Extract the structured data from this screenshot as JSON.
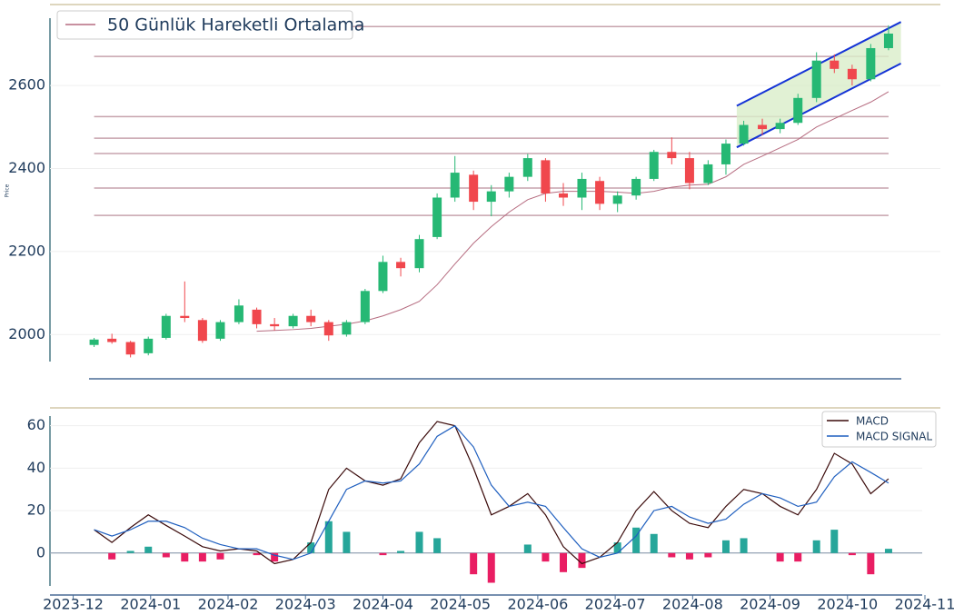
{
  "chart_data": [
    {
      "type": "candlestick",
      "y_label": "Price",
      "x": [
        0.27,
        0.5,
        0.74,
        0.97,
        1.2,
        1.44,
        1.67,
        1.9,
        2.14,
        2.37,
        2.6,
        2.84,
        3.07,
        3.3,
        3.53,
        3.77,
        4.0,
        4.23,
        4.47,
        4.7,
        4.93,
        5.17,
        5.4,
        5.63,
        5.87,
        6.1,
        6.33,
        6.57,
        6.8,
        7.03,
        7.27,
        7.5,
        7.73,
        7.96,
        8.2,
        8.43,
        8.66,
        8.9,
        9.13,
        9.36,
        9.6,
        9.83,
        10.06,
        10.3,
        10.53
      ],
      "open": [
        1975,
        1990,
        1982,
        1955,
        1992,
        2045,
        2035,
        1990,
        2030,
        2060,
        2025,
        2020,
        2045,
        2030,
        2000,
        2030,
        2105,
        2175,
        2160,
        2235,
        2330,
        2385,
        2320,
        2345,
        2380,
        2420,
        2340,
        2330,
        2370,
        2315,
        2335,
        2375,
        2440,
        2425,
        2365,
        2410,
        2460,
        2505,
        2495,
        2510,
        2570,
        2660,
        2640,
        2615,
        2690
      ],
      "high": [
        1992,
        2002,
        1985,
        1995,
        2050,
        2128,
        2040,
        2035,
        2085,
        2065,
        2040,
        2050,
        2060,
        2035,
        2035,
        2110,
        2190,
        2185,
        2240,
        2340,
        2430,
        2395,
        2360,
        2390,
        2435,
        2425,
        2365,
        2390,
        2380,
        2345,
        2380,
        2445,
        2475,
        2440,
        2420,
        2470,
        2515,
        2520,
        2520,
        2580,
        2680,
        2675,
        2650,
        2700,
        2745
      ],
      "low": [
        1970,
        1978,
        1945,
        1950,
        1988,
        2030,
        1980,
        1985,
        2025,
        2015,
        2010,
        2015,
        2020,
        1985,
        1995,
        2025,
        2100,
        2140,
        2150,
        2230,
        2320,
        2300,
        2285,
        2330,
        2370,
        2320,
        2310,
        2300,
        2300,
        2295,
        2325,
        2370,
        2410,
        2350,
        2360,
        2385,
        2455,
        2480,
        2485,
        2505,
        2560,
        2630,
        2600,
        2610,
        2685
      ],
      "close": [
        1988,
        1982,
        1952,
        1990,
        2045,
        2040,
        1985,
        2030,
        2070,
        2025,
        2020,
        2045,
        2030,
        1998,
        2030,
        2105,
        2175,
        2160,
        2230,
        2330,
        2390,
        2320,
        2345,
        2380,
        2425,
        2340,
        2330,
        2375,
        2315,
        2335,
        2375,
        2440,
        2425,
        2365,
        2410,
        2460,
        2505,
        2495,
        2510,
        2570,
        2660,
        2640,
        2615,
        2690,
        2725
      ],
      "up_color": "#26b874",
      "down_color": "#f0474d",
      "series": [
        {
          "name": "50 Günlük Hareketli Ortalama",
          "color": "#b66c80",
          "values": [
            null,
            null,
            null,
            null,
            null,
            null,
            null,
            null,
            null,
            2008,
            2010,
            2012,
            2015,
            2020,
            2025,
            2033,
            2045,
            2060,
            2080,
            2120,
            2170,
            2220,
            2260,
            2295,
            2325,
            2340,
            2345,
            2345,
            2345,
            2343,
            2340,
            2345,
            2355,
            2360,
            2362,
            2380,
            2410,
            2430,
            2450,
            2470,
            2500,
            2520,
            2540,
            2560,
            2585
          ]
        }
      ],
      "levels": [
        2742,
        2670,
        2525,
        2473,
        2436,
        2353,
        2287
      ],
      "level_color": "#c7a3ad",
      "channel": {
        "upper": [
          [
            8.57,
            2551
          ],
          [
            10.69,
            2753
          ]
        ],
        "lower": [
          [
            8.57,
            2451
          ],
          [
            10.69,
            2653
          ]
        ],
        "color": "#1433d6",
        "fill": "#d9eec9"
      },
      "xlim": [
        -0.3,
        11.0
      ],
      "ylim": [
        1935,
        2795
      ],
      "yticks": [
        2000,
        2200,
        2400,
        2600
      ],
      "grid": true
    },
    {
      "type": "macd",
      "x": [
        0.27,
        0.5,
        0.74,
        0.97,
        1.2,
        1.44,
        1.67,
        1.9,
        2.14,
        2.37,
        2.6,
        2.84,
        3.07,
        3.3,
        3.53,
        3.77,
        4.0,
        4.23,
        4.47,
        4.7,
        4.93,
        5.17,
        5.4,
        5.63,
        5.87,
        6.1,
        6.33,
        6.57,
        6.8,
        7.03,
        7.27,
        7.5,
        7.73,
        7.96,
        8.2,
        8.43,
        8.66,
        8.9,
        9.13,
        9.36,
        9.6,
        9.83,
        10.06,
        10.3,
        10.53
      ],
      "series": [
        {
          "name": "MACD",
          "color": "#3a0a0a",
          "values": [
            11,
            5,
            12,
            18,
            13,
            8,
            3,
            1,
            2,
            1,
            -5,
            -3,
            5,
            30,
            40,
            34,
            32,
            35,
            52,
            62,
            60,
            40,
            18,
            22,
            28,
            18,
            3,
            -5,
            -2,
            5,
            20,
            29,
            20,
            14,
            12,
            22,
            30,
            28,
            22,
            18,
            30,
            47,
            42,
            28,
            35
          ]
        },
        {
          "name": "MACD SIGNAL",
          "color": "#1f5fbf",
          "values": [
            11,
            8,
            11,
            15,
            15,
            12,
            7,
            4,
            2,
            2,
            -1,
            -3,
            0,
            15,
            30,
            34,
            33,
            34,
            42,
            55,
            60,
            50,
            32,
            22,
            24,
            22,
            12,
            2,
            -2,
            0,
            8,
            20,
            22,
            17,
            14,
            16,
            23,
            28,
            26,
            22,
            24,
            36,
            43,
            38,
            33
          ]
        }
      ],
      "histogram": {
        "values": [
          0,
          -3,
          1,
          3,
          -2,
          -4,
          -4,
          -3,
          0,
          -1,
          -4,
          0,
          5,
          15,
          10,
          0,
          -1,
          1,
          10,
          7,
          0,
          -10,
          -14,
          0,
          4,
          -4,
          -9,
          -7,
          0,
          5,
          12,
          9,
          -2,
          -3,
          -2,
          6,
          7,
          0,
          -4,
          -4,
          6,
          11,
          -1,
          -10,
          2
        ],
        "up_color": "#26a69a",
        "down_color": "#e91e63"
      },
      "xlim": [
        -0.3,
        11.0
      ],
      "xticks": [
        {
          "value": 0,
          "label": "2023-12"
        },
        {
          "value": 1,
          "label": "2024-01"
        },
        {
          "value": 2,
          "label": "2024-02"
        },
        {
          "value": 3,
          "label": "2024-03"
        },
        {
          "value": 4,
          "label": "2024-04"
        },
        {
          "value": 5,
          "label": "2024-05"
        },
        {
          "value": 6,
          "label": "2024-06"
        },
        {
          "value": 7,
          "label": "2024-07"
        },
        {
          "value": 8,
          "label": "2024-08"
        },
        {
          "value": 9,
          "label": "2024-09"
        },
        {
          "value": 10,
          "label": "2024-10"
        },
        {
          "value": 11,
          "label": "2024-11"
        }
      ],
      "ylim": [
        -15.5,
        68
      ],
      "yticks": [
        0,
        20,
        40,
        60
      ],
      "grid": true
    }
  ]
}
